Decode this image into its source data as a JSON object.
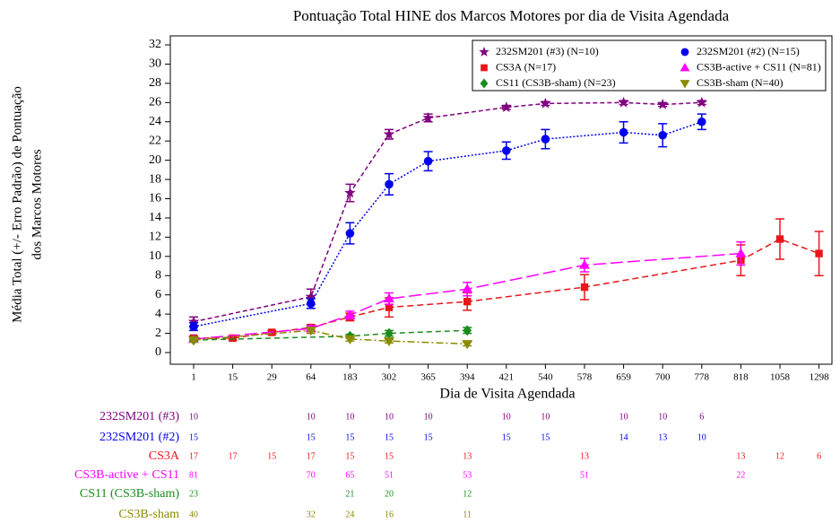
{
  "chart_data": {
    "type": "line",
    "title": "Pontuação Total HINE dos Marcos Motores por dia de Visita Agendada",
    "y_label": [
      "Média Total (+/- Erro Padrão) de Pontuação",
      "dos Marcos Motores"
    ],
    "x_label": "Dia de Visita Agendada",
    "categories": [
      "1",
      "15",
      "29",
      "64",
      "183",
      "302",
      "365",
      "394",
      "421",
      "540",
      "578",
      "659",
      "700",
      "778",
      "818",
      "1058",
      "1298"
    ],
    "ylim": [
      0,
      32
    ],
    "yticks": [
      0,
      2,
      4,
      6,
      8,
      10,
      12,
      14,
      16,
      18,
      20,
      22,
      24,
      26,
      28,
      30,
      32
    ],
    "series": [
      {
        "name": "232SM201 (#3)",
        "legend_label": "232SM201 (#3) (N=10)",
        "color": "#800080",
        "marker": "star",
        "dash": "5,3",
        "x": [
          "1",
          "64",
          "183",
          "302",
          "365",
          "421",
          "540",
          "659",
          "700",
          "778"
        ],
        "values": [
          3.2,
          5.8,
          16.6,
          22.7,
          24.4,
          25.5,
          25.9,
          26.0,
          25.8,
          26.0
        ],
        "errors": [
          0.5,
          0.8,
          0.9,
          0.5,
          0.4,
          0.2,
          0.2,
          0.2,
          0.2,
          0.2
        ],
        "n": [
          10,
          10,
          10,
          10,
          10,
          10,
          10,
          10,
          10,
          6
        ]
      },
      {
        "name": "232SM201 (#2)",
        "legend_label": "232SM201 (#2) (N=15)",
        "color": "#0000ee",
        "marker": "circle",
        "dash": "2,2",
        "x": [
          "1",
          "64",
          "183",
          "302",
          "365",
          "421",
          "540",
          "659",
          "700",
          "778"
        ],
        "values": [
          2.7,
          5.1,
          12.4,
          17.5,
          19.9,
          21.0,
          22.2,
          22.9,
          22.6,
          24.0
        ],
        "errors": [
          0.4,
          0.5,
          1.1,
          1.1,
          1.0,
          0.9,
          1.0,
          1.1,
          1.2,
          0.8
        ],
        "n": [
          15,
          15,
          15,
          15,
          15,
          15,
          15,
          14,
          13,
          10
        ]
      },
      {
        "name": "CS3A",
        "legend_label": "CS3A (N=17)",
        "color": "#e8161b",
        "marker": "square",
        "dash": "7,4",
        "x": [
          "1",
          "15",
          "29",
          "64",
          "183",
          "302",
          "394",
          "578",
          "818",
          "1058",
          "1298"
        ],
        "values": [
          1.5,
          1.5,
          2.1,
          2.6,
          3.7,
          4.7,
          5.3,
          6.8,
          9.6,
          11.8,
          10.3
        ],
        "errors": [
          0.2,
          0.2,
          0.2,
          0.3,
          0.4,
          1.0,
          0.9,
          1.3,
          1.6,
          2.1,
          2.3
        ],
        "n": [
          17,
          17,
          15,
          17,
          15,
          15,
          13,
          13,
          13,
          12,
          6
        ]
      },
      {
        "name": "CS3B-active + CS11",
        "legend_label": "CS3B-active + CS11 (N=81)",
        "color": "#ff00ff",
        "marker": "triangle",
        "dash": "14,5",
        "x": [
          "1",
          "64",
          "183",
          "302",
          "394",
          "578",
          "818"
        ],
        "values": [
          1.4,
          2.5,
          3.9,
          5.6,
          6.6,
          9.1,
          10.3
        ],
        "errors": [
          0.2,
          0.3,
          0.4,
          0.6,
          0.7,
          0.7,
          1.2
        ],
        "n": [
          81,
          70,
          65,
          51,
          53,
          51,
          22
        ]
      },
      {
        "name": "CS11 (CS3B-sham)",
        "legend_label": "CS11 (CS3B-sham) (N=23)",
        "color": "#1a8c1a",
        "marker": "diamond",
        "dash": "6,4",
        "x": [
          "1",
          "183",
          "302",
          "394"
        ],
        "values": [
          1.3,
          1.7,
          2.0,
          2.3
        ],
        "errors": [
          0.2,
          0.2,
          0.3,
          0.3
        ],
        "n": [
          23,
          21,
          20,
          12
        ]
      },
      {
        "name": "CS3B-sham",
        "legend_label": "CS3B-sham (N=40)",
        "color": "#8b8b00",
        "marker": "triangle-down",
        "dash": "8,3,2,3",
        "x": [
          "1",
          "64",
          "183",
          "302",
          "394"
        ],
        "values": [
          1.3,
          2.3,
          1.4,
          1.2,
          0.9
        ],
        "errors": [
          0.2,
          0.3,
          0.2,
          0.2,
          0.2
        ],
        "n": [
          40,
          32,
          24,
          16,
          11
        ]
      }
    ],
    "legend_position": "upper right"
  }
}
